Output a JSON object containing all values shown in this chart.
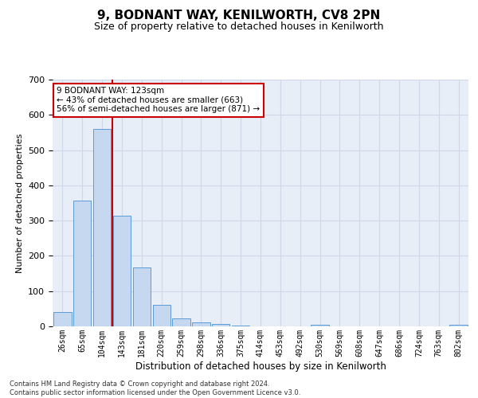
{
  "title1": "9, BODNANT WAY, KENILWORTH, CV8 2PN",
  "title2": "Size of property relative to detached houses in Kenilworth",
  "xlabel": "Distribution of detached houses by size in Kenilworth",
  "ylabel": "Number of detached properties",
  "categories": [
    "26sqm",
    "65sqm",
    "104sqm",
    "143sqm",
    "181sqm",
    "220sqm",
    "259sqm",
    "298sqm",
    "336sqm",
    "375sqm",
    "414sqm",
    "453sqm",
    "492sqm",
    "530sqm",
    "569sqm",
    "608sqm",
    "647sqm",
    "686sqm",
    "724sqm",
    "763sqm",
    "802sqm"
  ],
  "values": [
    40,
    357,
    560,
    315,
    168,
    62,
    22,
    12,
    7,
    3,
    0,
    0,
    0,
    5,
    0,
    0,
    0,
    0,
    0,
    0,
    5
  ],
  "bar_color": "#c5d8f0",
  "bar_edge_color": "#5b9bd5",
  "grid_color": "#d0d8e8",
  "background_color": "#e8eef8",
  "vline_x": 2.5,
  "vline_color": "#cc0000",
  "annotation_text": "9 BODNANT WAY: 123sqm\n← 43% of detached houses are smaller (663)\n56% of semi-detached houses are larger (871) →",
  "annotation_box_color": "#ffffff",
  "annotation_box_edge": "#cc0000",
  "ylim": [
    0,
    700
  ],
  "yticks": [
    0,
    100,
    200,
    300,
    400,
    500,
    600,
    700
  ],
  "footer": "Contains HM Land Registry data © Crown copyright and database right 2024.\nContains public sector information licensed under the Open Government Licence v3.0."
}
